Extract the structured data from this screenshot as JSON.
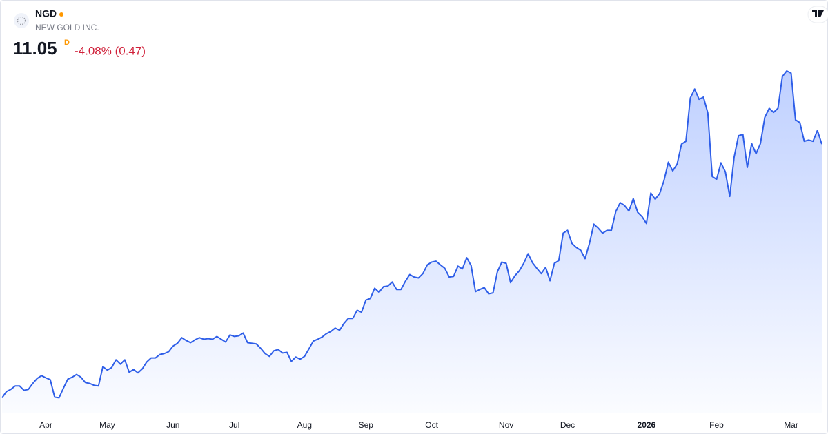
{
  "header": {
    "symbol": "NGD",
    "name": "NEW GOLD INC.",
    "price": "11.05",
    "interval": "D",
    "change": "-4.08% (0.47)"
  },
  "chart_data": {
    "type": "line",
    "color": "#2e5ee8",
    "values": [
      2.9,
      3.1,
      3.17,
      3.28,
      3.28,
      3.14,
      3.17,
      3.36,
      3.52,
      3.61,
      3.54,
      3.48,
      2.92,
      2.9,
      3.21,
      3.5,
      3.56,
      3.65,
      3.56,
      3.39,
      3.36,
      3.3,
      3.28,
      3.9,
      3.79,
      3.87,
      4.12,
      3.98,
      4.12,
      3.72,
      3.81,
      3.7,
      3.83,
      4.05,
      4.18,
      4.18,
      4.29,
      4.32,
      4.38,
      4.56,
      4.65,
      4.83,
      4.74,
      4.67,
      4.76,
      4.83,
      4.78,
      4.8,
      4.78,
      4.87,
      4.78,
      4.69,
      4.92,
      4.87,
      4.89,
      4.98,
      4.67,
      4.65,
      4.63,
      4.49,
      4.32,
      4.23,
      4.41,
      4.45,
      4.34,
      4.36,
      4.07,
      4.21,
      4.14,
      4.23,
      4.47,
      4.72,
      4.78,
      4.85,
      4.96,
      5.03,
      5.14,
      5.07,
      5.29,
      5.45,
      5.45,
      5.71,
      5.65,
      6.04,
      6.09,
      6.42,
      6.29,
      6.47,
      6.49,
      6.62,
      6.38,
      6.38,
      6.64,
      6.86,
      6.78,
      6.75,
      6.89,
      7.17,
      7.26,
      7.29,
      7.17,
      7.06,
      6.78,
      6.8,
      7.13,
      7.04,
      7.4,
      7.15,
      6.31,
      6.38,
      6.44,
      6.24,
      6.27,
      6.95,
      7.26,
      7.22,
      6.6,
      6.82,
      6.98,
      7.22,
      7.53,
      7.24,
      7.06,
      6.89,
      7.09,
      6.66,
      7.22,
      7.31,
      8.19,
      8.28,
      7.86,
      7.73,
      7.64,
      7.37,
      7.86,
      8.48,
      8.35,
      8.19,
      8.28,
      8.28,
      8.88,
      9.17,
      9.08,
      8.9,
      9.3,
      8.86,
      8.72,
      8.5,
      9.48,
      9.28,
      9.46,
      9.88,
      10.47,
      10.19,
      10.41,
      11.05,
      11.14,
      12.53,
      12.82,
      12.49,
      12.56,
      12.05,
      10.01,
      9.92,
      10.45,
      10.16,
      9.37,
      10.63,
      11.32,
      11.36,
      10.3,
      11.07,
      10.74,
      11.07,
      11.91,
      12.2,
      12.07,
      12.2,
      13.22,
      13.4,
      13.33,
      11.83,
      11.74,
      11.14,
      11.18,
      11.14,
      11.49,
      11.05
    ],
    "xlim": [
      0,
      187
    ],
    "xticks": [
      {
        "value": 10,
        "label": "Apr"
      },
      {
        "value": 24,
        "label": "May"
      },
      {
        "value": 39,
        "label": "Jun"
      },
      {
        "value": 53,
        "label": "Jul"
      },
      {
        "value": 69,
        "label": "Aug"
      },
      {
        "value": 83,
        "label": "Sep"
      },
      {
        "value": 98,
        "label": "Oct"
      },
      {
        "value": 115,
        "label": "Nov"
      },
      {
        "value": 129,
        "label": "Dec"
      },
      {
        "value": 147,
        "label": "2026"
      },
      {
        "value": 163,
        "label": "Feb"
      },
      {
        "value": 180,
        "label": "Mar"
      }
    ],
    "ylim": [
      2.4,
      13.6
    ]
  }
}
